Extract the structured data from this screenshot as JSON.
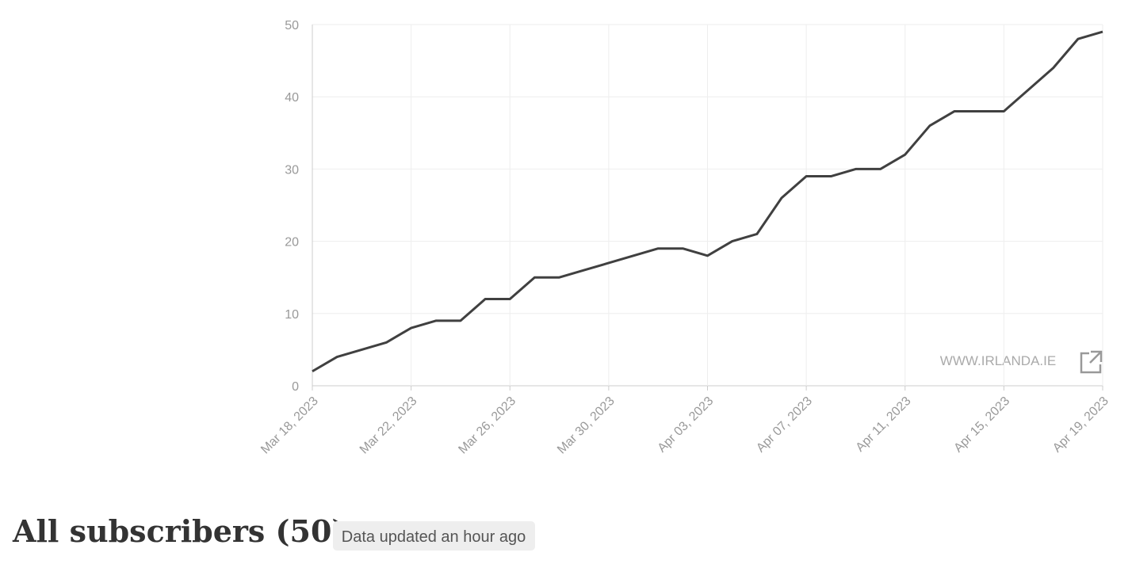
{
  "chart_data": {
    "type": "line",
    "categories": [
      "Mar 18, 2023",
      null,
      null,
      null,
      "Mar 22, 2023",
      null,
      null,
      null,
      "Mar 26, 2023",
      null,
      null,
      null,
      "Mar 30, 2023",
      null,
      null,
      null,
      "Apr 03, 2023",
      null,
      null,
      null,
      "Apr 07, 2023",
      null,
      null,
      null,
      "Apr 11, 2023",
      null,
      null,
      null,
      "Apr 15, 2023",
      null,
      null,
      null,
      "Apr 19, 2023"
    ],
    "values": [
      2,
      4,
      5,
      6,
      8,
      9,
      9,
      12,
      12,
      15,
      15,
      16,
      17,
      18,
      19,
      19,
      18,
      20,
      21,
      26,
      29,
      29,
      30,
      30,
      32,
      36,
      38,
      38,
      38,
      41,
      44,
      48,
      49
    ],
    "color": "#404040",
    "ylim": [
      0,
      50
    ],
    "yticks": [
      0,
      10,
      20,
      30,
      40,
      50
    ],
    "grid": true,
    "watermark": "WWW.IRLANDA.IE"
  },
  "heading": "All subscribers (50)",
  "badge": "Data updated an hour ago"
}
